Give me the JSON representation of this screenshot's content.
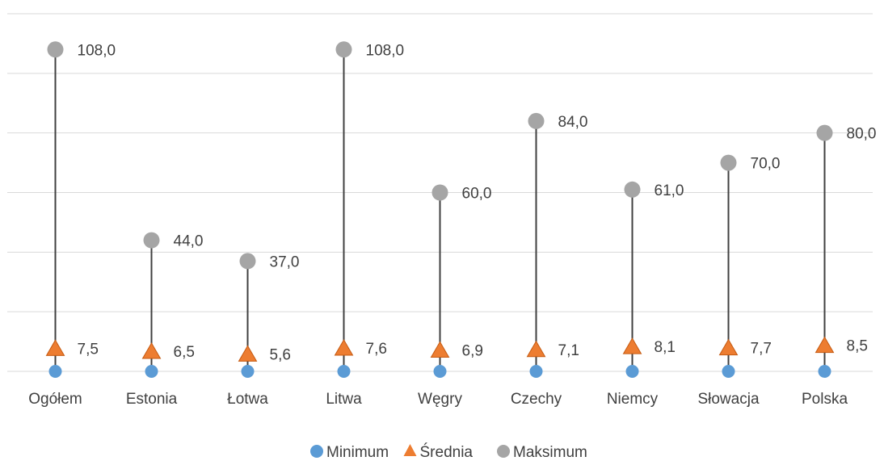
{
  "chart_data": {
    "type": "scatter",
    "categories": [
      "Ogółem",
      "Estonia",
      "Łotwa",
      "Litwa",
      "Węgry",
      "Czechy",
      "Niemcy",
      "Słowacja",
      "Polska"
    ],
    "series": [
      {
        "name": "Minimum",
        "values": [
          0,
          0,
          0,
          0,
          0,
          0,
          0,
          0,
          0
        ],
        "labels_shown": false,
        "color": "#5b9bd5",
        "marker": "circle"
      },
      {
        "name": "Średnia",
        "values": [
          7.5,
          6.5,
          5.6,
          7.6,
          6.9,
          7.1,
          8.1,
          7.7,
          8.5
        ],
        "labels": [
          "7,5",
          "6,5",
          "5,6",
          "7,6",
          "6,9",
          "7,1",
          "8,1",
          "7,7",
          "8,5"
        ],
        "color": "#ed7d31",
        "marker": "triangle"
      },
      {
        "name": "Maksimum",
        "values": [
          108,
          44,
          37,
          108,
          60,
          84,
          61,
          70,
          80
        ],
        "labels": [
          "108,0",
          "44,0",
          "37,0",
          "108,0",
          "60,0",
          "84,0",
          "61,0",
          "70,0",
          "80,0"
        ],
        "color": "#a5a5a5",
        "marker": "circle"
      }
    ],
    "ylim": [
      0,
      120
    ],
    "grid": true,
    "stems": "high-low lines from minimum to maximum",
    "stem_color": "#404040",
    "legend_position": "bottom"
  }
}
